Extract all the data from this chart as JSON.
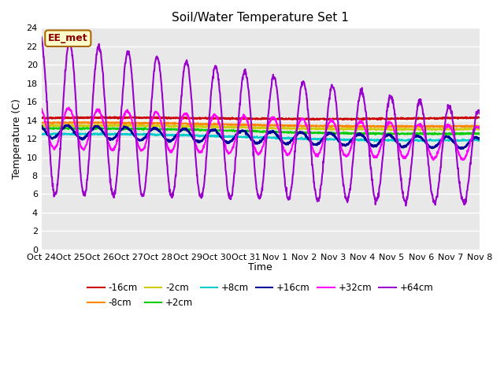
{
  "title": "Soil/Water Temperature Set 1",
  "ylabel": "Temperature (C)",
  "xlabel": "Time",
  "ylim": [
    0,
    24
  ],
  "yticks": [
    0,
    2,
    4,
    6,
    8,
    10,
    12,
    14,
    16,
    18,
    20,
    22,
    24
  ],
  "bg_color": "#e8e8e8",
  "fig_bg": "#ffffff",
  "annotation_text": "EE_met",
  "annotation_bg": "#ffffcc",
  "annotation_border": "#aa6600",
  "series": [
    {
      "label": "-16cm",
      "color": "#cc0000",
      "lw": 1.5
    },
    {
      "label": "-8cm",
      "color": "#ff8800",
      "lw": 1.5
    },
    {
      "label": "-2cm",
      "color": "#cccc00",
      "lw": 1.5
    },
    {
      "label": "+2cm",
      "color": "#00cc00",
      "lw": 1.5
    },
    {
      "label": "+8cm",
      "color": "#00cccc",
      "lw": 1.5
    },
    {
      "label": "+16cm",
      "color": "#000099",
      "lw": 1.8
    },
    {
      "label": "+32cm",
      "color": "#ff00ff",
      "lw": 1.5
    },
    {
      "label": "+64cm",
      "color": "#9900cc",
      "lw": 1.5
    }
  ],
  "xtick_labels": [
    "Oct 24",
    "Oct 25",
    "Oct 26",
    "Oct 27",
    "Oct 28",
    "Oct 29",
    "Oct 30",
    "Oct 31",
    "Nov 1",
    "Nov 2",
    "Nov 3",
    "Nov 4",
    "Nov 5",
    "Nov 6",
    "Nov 7",
    "Nov 8"
  ]
}
